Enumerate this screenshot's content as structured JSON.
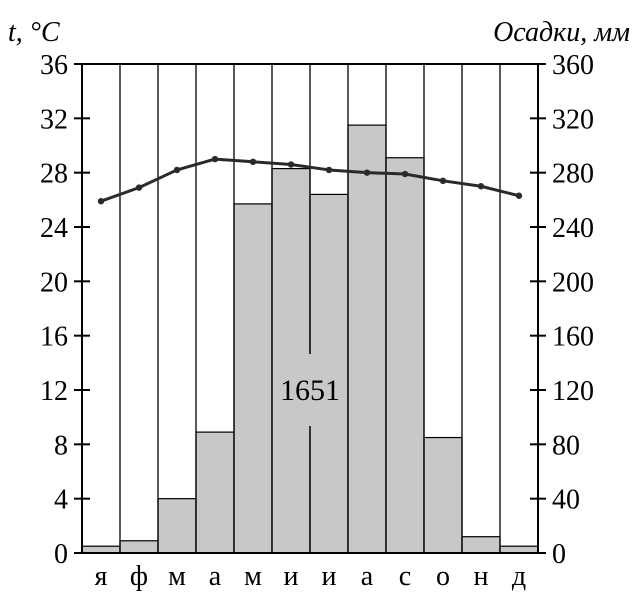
{
  "chart_data": {
    "type": "bar+line",
    "title": "",
    "categories": [
      "я",
      "ф",
      "м",
      "а",
      "м",
      "и",
      "и",
      "а",
      "с",
      "о",
      "н",
      "д"
    ],
    "left_axis_label": "t, °C",
    "right_axis_label": "Осадки, мм",
    "left_ylim": [
      0,
      36
    ],
    "left_ticks": [
      0,
      4,
      8,
      12,
      16,
      20,
      24,
      28,
      32,
      36
    ],
    "right_ylim": [
      0,
      360
    ],
    "right_ticks": [
      0,
      40,
      80,
      120,
      160,
      200,
      240,
      280,
      320,
      360
    ],
    "grid": "vertical lines at month boundaries",
    "annotation": "1651",
    "series": [
      {
        "type": "bar",
        "axis": "right",
        "values": [
          5,
          9,
          40,
          89,
          257,
          283,
          264,
          315,
          291,
          85,
          12,
          5
        ],
        "color": "#c8c8c8"
      },
      {
        "type": "line",
        "axis": "left",
        "values": [
          25.9,
          26.9,
          28.2,
          29.0,
          28.8,
          28.6,
          28.2,
          28.0,
          27.9,
          27.4,
          27.0,
          26.3
        ],
        "color": "#2a2a2a"
      }
    ]
  }
}
